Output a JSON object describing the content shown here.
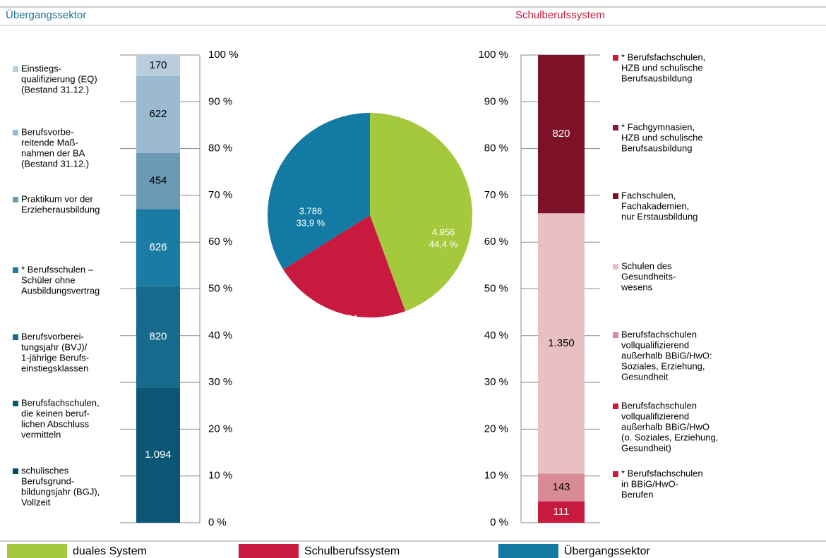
{
  "chart_data": [
    {
      "type": "stacked_bar",
      "title": "Übergangssektor",
      "values": [
        1094,
        820,
        626,
        454,
        622,
        170
      ],
      "value_labels": [
        "1.094",
        "820",
        "626",
        "454",
        "622",
        "170"
      ],
      "colors": [
        "#0b5674",
        "#176a8c",
        "#1b7ca3",
        "#6b9ab5",
        "#9bbad0",
        "#b8cedd"
      ],
      "value_label_colors": [
        "#ffffff",
        "#ffffff",
        "#ffffff",
        "#000000",
        "#000000",
        "#000000"
      ],
      "ylim": [
        0,
        100
      ],
      "yticks": [
        {
          "value": 0,
          "label": "0 %"
        },
        {
          "value": 10,
          "label": "10 %"
        },
        {
          "value": 20,
          "label": "20 %"
        },
        {
          "value": 30,
          "label": "30 %"
        },
        {
          "value": 40,
          "label": "40 %"
        },
        {
          "value": 50,
          "label": "50 %"
        },
        {
          "value": 60,
          "label": "60 %"
        },
        {
          "value": 70,
          "label": "70 %"
        },
        {
          "value": 80,
          "label": "80 %"
        },
        {
          "value": 90,
          "label": "90 %"
        },
        {
          "value": 100,
          "label": "100 %"
        }
      ],
      "legend": [
        {
          "color": "#b8cedd",
          "lines": [
            "Einstiegs-",
            "qualifizierung (EQ)",
            "(Bestand 31.12.)"
          ]
        },
        {
          "color": "#9bbad0",
          "lines": [
            "Berufsvorbe-",
            "reitende Maß-",
            "nahmen der BA",
            "(Bestand 31.12.)"
          ]
        },
        {
          "color": "#6b9ab5",
          "lines": [
            "Praktikum vor der",
            "Erzieherausbildung"
          ]
        },
        {
          "color": "#1b7ca3",
          "lines": [
            "* Berufsschulen –",
            "Schüler ohne",
            "Ausbildungsvertrag"
          ]
        },
        {
          "color": "#176a8c",
          "lines": [
            "Berufsvorberei-",
            "tungsjahr (BVJ)/",
            "1-jährige Berufs-",
            "einstiegsklassen"
          ]
        },
        {
          "color": "#0b5674",
          "lines": [
            "Berufsfachschulen,",
            "die keinen beruf-",
            "lichen Abschluss",
            "vermitteln"
          ]
        },
        {
          "color": "#094a63",
          "lines": [
            "schulisches",
            "Berufsgrund-",
            "bildungsjahr (BGJ),",
            "Vollzeit"
          ]
        }
      ]
    },
    {
      "type": "pie",
      "categories": [
        "duales System",
        "Schulberufssystem",
        "Übergangssektor"
      ],
      "values": [
        4956,
        2424,
        3786
      ],
      "value_labels": [
        "4.956",
        "2.424",
        "3.786"
      ],
      "percent_labels": [
        "44,4 %",
        "21,7 %",
        "33,9 %"
      ],
      "colors": [
        "#a5c93c",
        "#c8193f",
        "#137aa3"
      ]
    },
    {
      "type": "stacked_bar",
      "title": "Schulberufssystem",
      "values": [
        111,
        143,
        1350,
        820
      ],
      "value_labels": [
        "111",
        "143",
        "1.350",
        "820"
      ],
      "colors": [
        "#c8193f",
        "#d88a95",
        "#e8c0c4",
        "#7c1128"
      ],
      "value_label_colors": [
        "#ffffff",
        "#000000",
        "#000000",
        "#ffffff"
      ],
      "ylim": [
        0,
        100
      ],
      "yticks": [
        {
          "value": 0,
          "label": "0 %"
        },
        {
          "value": 10,
          "label": "10 %"
        },
        {
          "value": 20,
          "label": "20 %"
        },
        {
          "value": 30,
          "label": "30 %"
        },
        {
          "value": 40,
          "label": "40 %"
        },
        {
          "value": 50,
          "label": "50 %"
        },
        {
          "value": 60,
          "label": "60 %"
        },
        {
          "value": 70,
          "label": "70 %"
        },
        {
          "value": 80,
          "label": "80 %"
        },
        {
          "value": 90,
          "label": "90 %"
        },
        {
          "value": 100,
          "label": "100 %"
        }
      ],
      "legend": [
        {
          "color": "#c8193f",
          "lines": [
            "* Berufsfachschulen,",
            "HZB und schulische",
            "Berufsausbildung"
          ]
        },
        {
          "color": "#8b1a2e",
          "lines": [
            "* Fachgymnasien,",
            "HZB und schulische",
            "Berufsausbildung"
          ]
        },
        {
          "color": "#7c1128",
          "lines": [
            "Fachschulen,",
            "Fachakademien,",
            "nur Erstausbildung"
          ]
        },
        {
          "color": "#e8c0c4",
          "lines": [
            "Schulen des",
            "Gesundheits-",
            "wesens"
          ]
        },
        {
          "color": "#d88a95",
          "lines": [
            "Berufsfachschulen",
            "vollqualifizierend",
            "außerhalb BBiG/HwO:",
            "Soziales, Erziehung,",
            "Gesundheit"
          ]
        },
        {
          "color": "#c8193f",
          "lines": [
            "Berufsfachschulen",
            "vollqualifizierend",
            "außerhalb BBiG/HwO",
            "(o. Soziales, Erziehung,",
            "Gesundheit)"
          ]
        },
        {
          "color": "#c8193f",
          "lines": [
            "* Berufsfachschulen",
            "in BBiG/HwO-",
            "Berufen"
          ]
        }
      ]
    }
  ]
}
